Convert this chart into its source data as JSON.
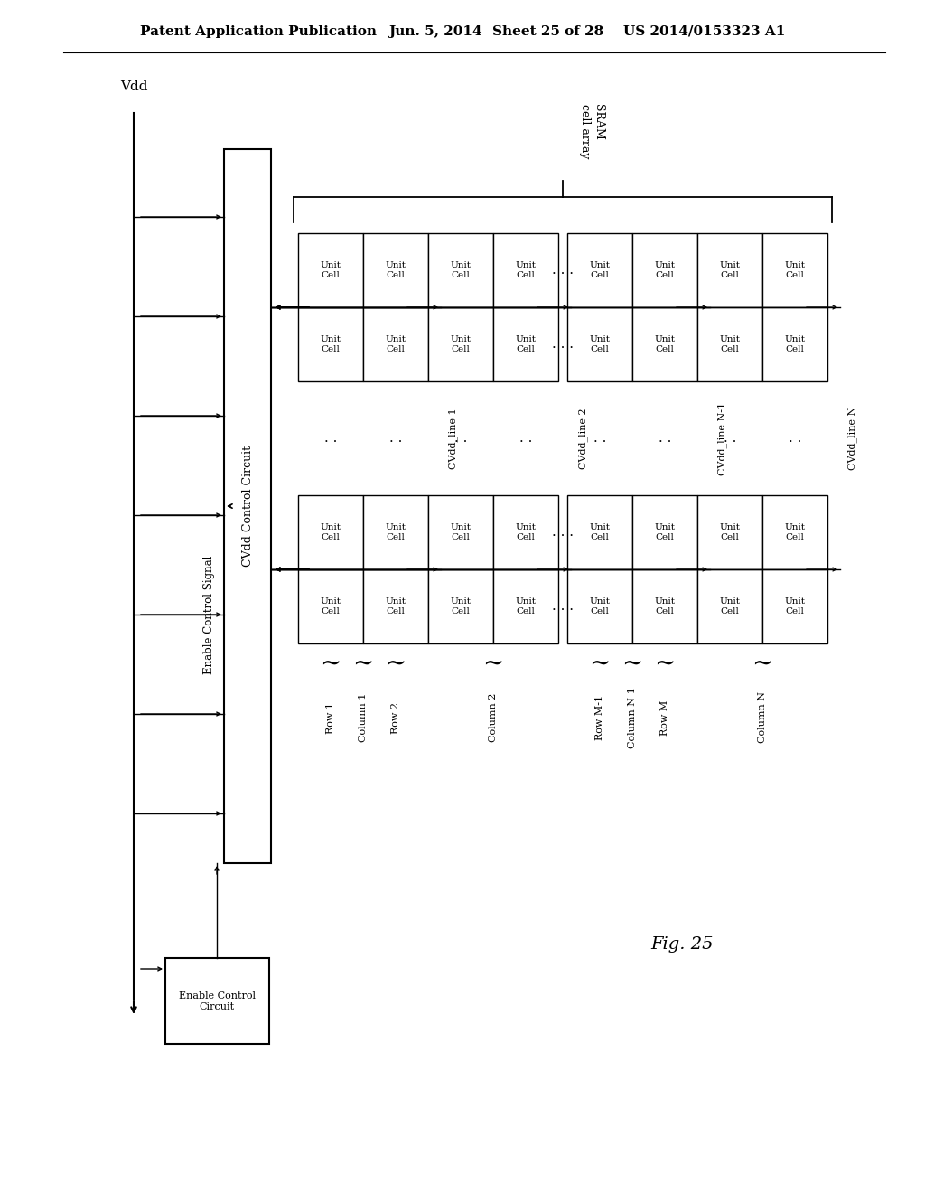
{
  "background_color": "#ffffff",
  "text_color": "#000000",
  "header_text": "Patent Application Publication",
  "header_date": "Jun. 5, 2014",
  "header_sheet": "Sheet 25 of 28",
  "header_patent": "US 2014/0153323 A1",
  "fig_label": "Fig. 25",
  "vdd_label": "Vdd",
  "enable_control_circuit_label": "Enable Control\nCircuit",
  "enable_control_signal_label": "Enable Control Signal",
  "cvdd_control_circuit_label": "CVdd Control Circuit",
  "sram_cell_array_label": "SRAM\ncell array",
  "row_labels": [
    "Row 1",
    "Row 2",
    "Row M-1",
    "Row M"
  ],
  "col_labels": [
    "Column 1",
    "Column 2",
    "Column N-1",
    "Column N"
  ],
  "cvdd_line_labels": [
    "CVdd_line 1",
    "CVdd_line 2",
    "CVdd_line N-1",
    "CVdd_line N"
  ],
  "cell_label": "Unit\nCell"
}
